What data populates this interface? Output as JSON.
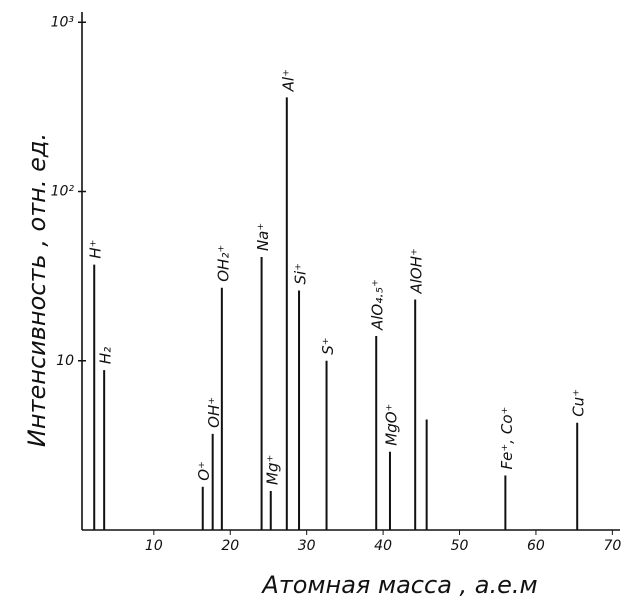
{
  "chart_data": {
    "type": "stick",
    "x_label": "Атомная масса , а.е.м",
    "y_label": "Интенсивность , отн. ед.",
    "x": [
      2.2,
      3.5,
      16.4,
      17.7,
      18.9,
      24.1,
      25.3,
      27.4,
      29.0,
      32.6,
      39.1,
      40.9,
      44.2,
      45.7,
      56.0,
      65.4
    ],
    "values": [
      37,
      8.8,
      1.8,
      3.7,
      27,
      41,
      1.7,
      360,
      26,
      10,
      14,
      2.9,
      23,
      4.5,
      2.1,
      4.3
    ],
    "labels": [
      "H⁺",
      "H₂",
      "O⁺",
      "OH⁺",
      "OH₂⁺",
      "Na⁺",
      "Mg⁺",
      "Al⁺",
      "Si⁺",
      "S⁺",
      "AlO₄.₅⁺",
      "MgO⁺",
      "AlOH⁺",
      null,
      "Fe⁺, Co⁺",
      "Cu⁺"
    ],
    "color": "#111111",
    "xlim": [
      0.6,
      71
    ],
    "xticks": [
      10,
      20,
      30,
      40,
      50,
      60,
      70
    ],
    "ylim": [
      1,
      1150
    ],
    "ylog": true,
    "yticks": [
      10,
      {
        "value": 100,
        "label": "10²"
      },
      {
        "value": 1000,
        "label": "10³"
      }
    ]
  }
}
